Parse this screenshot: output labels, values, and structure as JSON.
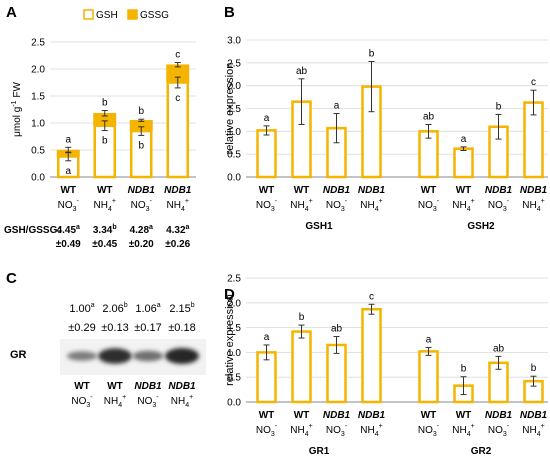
{
  "colors": {
    "bar": "#F4B400",
    "grid": "#D9D9D9",
    "error": "#333333"
  },
  "chart_data": [
    {
      "id": "A",
      "panel_label": "A",
      "type": "bar",
      "stacked": true,
      "ylabel_parts": [
        "μmol g",
        "-1",
        " FW"
      ],
      "ylim": [
        0,
        2.5
      ],
      "yticks": [
        "0.0",
        "0.5",
        "1.0",
        "1.5",
        "2.0",
        "2.5"
      ],
      "grid": true,
      "legend": {
        "placement": "top",
        "items": [
          "GSH",
          "GSSG"
        ]
      },
      "categories": [
        {
          "genotype": "WT",
          "italic": false,
          "ion_base": "NO",
          "ion_sub": "3",
          "ion_sup": "-"
        },
        {
          "genotype": "WT",
          "italic": false,
          "ion_base": "NH",
          "ion_sub": "4",
          "ion_sup": "+"
        },
        {
          "genotype": "NDB1",
          "italic": true,
          "ion_base": "NO",
          "ion_sub": "3",
          "ion_sup": "-"
        },
        {
          "genotype": "NDB1",
          "italic": true,
          "ion_base": "NH",
          "ion_sub": "4",
          "ion_sup": "+"
        }
      ],
      "series": [
        {
          "name": "GSH",
          "values": [
            0.38,
            0.95,
            0.85,
            1.75
          ],
          "errors": [
            0.08,
            0.09,
            0.08,
            0.1
          ],
          "letters": [
            "a",
            "b",
            "b",
            "c"
          ]
        },
        {
          "name": "GSSG",
          "values": [
            0.12,
            0.23,
            0.2,
            0.33
          ],
          "errors": [
            0.05,
            0.05,
            0.02,
            0.04
          ],
          "letters": [
            "a",
            "b",
            "b",
            "c"
          ]
        }
      ],
      "ratio_label": "GSH/GSSG:",
      "ratios": [
        {
          "value": "4.45",
          "sup": "a",
          "sd": "±0.49"
        },
        {
          "value": "3.34",
          "sup": "b",
          "sd": "±0.45"
        },
        {
          "value": "4.28",
          "sup": "a",
          "sd": "±0.20"
        },
        {
          "value": "4.32",
          "sup": "a",
          "sd": "±0.26"
        }
      ]
    },
    {
      "id": "B",
      "panel_label": "B",
      "type": "bar",
      "ylabel": "relative expression",
      "ylim": [
        0,
        3.0
      ],
      "yticks": [
        "0.0",
        "0.5",
        "1.0",
        "1.5",
        "2.0",
        "2.5",
        "3.0"
      ],
      "grid": true,
      "groups": [
        {
          "name": "GSH1",
          "values": [
            1.02,
            1.65,
            1.07,
            1.98
          ],
          "errors": [
            0.1,
            0.5,
            0.32,
            0.55
          ],
          "letters": [
            "a",
            "ab",
            "a",
            "b"
          ],
          "categories": [
            {
              "genotype": "WT",
              "italic": false,
              "ion_base": "NO",
              "ion_sub": "3",
              "ion_sup": "-"
            },
            {
              "genotype": "WT",
              "italic": false,
              "ion_base": "NH",
              "ion_sub": "4",
              "ion_sup": "+"
            },
            {
              "genotype": "NDB1",
              "italic": true,
              "ion_base": "NO",
              "ion_sub": "3",
              "ion_sup": "-"
            },
            {
              "genotype": "NDB1",
              "italic": true,
              "ion_base": "NH",
              "ion_sub": "4",
              "ion_sup": "+"
            }
          ]
        },
        {
          "name": "GSH2",
          "values": [
            1.0,
            0.62,
            1.1,
            1.63
          ],
          "errors": [
            0.15,
            0.04,
            0.27,
            0.27
          ],
          "letters": [
            "ab",
            "a",
            "b",
            "c"
          ],
          "categories": [
            {
              "genotype": "WT",
              "italic": false,
              "ion_base": "NO",
              "ion_sub": "3",
              "ion_sup": "-"
            },
            {
              "genotype": "WT",
              "italic": false,
              "ion_base": "NH",
              "ion_sub": "4",
              "ion_sup": "+"
            },
            {
              "genotype": "NDB1",
              "italic": true,
              "ion_base": "NO",
              "ion_sub": "3",
              "ion_sup": "-"
            },
            {
              "genotype": "NDB1",
              "italic": true,
              "ion_base": "NH",
              "ion_sub": "4",
              "ion_sup": "+"
            }
          ]
        }
      ]
    },
    {
      "id": "D",
      "panel_label": "D",
      "type": "bar",
      "ylabel": "relative expression",
      "ylim": [
        0,
        2.5
      ],
      "yticks": [
        "0.0",
        "0.5",
        "1.0",
        "1.5",
        "2.0",
        "2.5"
      ],
      "grid": true,
      "groups": [
        {
          "name": "GR1",
          "values": [
            1.0,
            1.42,
            1.15,
            1.87
          ],
          "errors": [
            0.15,
            0.13,
            0.17,
            0.1
          ],
          "letters": [
            "a",
            "b",
            "ab",
            "c"
          ],
          "categories": [
            {
              "genotype": "WT",
              "italic": false,
              "ion_base": "NO",
              "ion_sub": "3",
              "ion_sup": "-"
            },
            {
              "genotype": "WT",
              "italic": false,
              "ion_base": "NH",
              "ion_sub": "4",
              "ion_sup": "+"
            },
            {
              "genotype": "NDB1",
              "italic": true,
              "ion_base": "NO",
              "ion_sub": "3",
              "ion_sup": "-"
            },
            {
              "genotype": "NDB1",
              "italic": true,
              "ion_base": "NH",
              "ion_sub": "4",
              "ion_sup": "+"
            }
          ]
        },
        {
          "name": "GR2",
          "values": [
            1.02,
            0.33,
            0.79,
            0.42
          ],
          "errors": [
            0.08,
            0.18,
            0.13,
            0.1
          ],
          "letters": [
            "a",
            "b",
            "ab",
            "b"
          ],
          "categories": [
            {
              "genotype": "WT",
              "italic": false,
              "ion_base": "NO",
              "ion_sub": "3",
              "ion_sup": "-"
            },
            {
              "genotype": "WT",
              "italic": false,
              "ion_base": "NH",
              "ion_sub": "4",
              "ion_sup": "+"
            },
            {
              "genotype": "NDB1",
              "italic": true,
              "ion_base": "NO",
              "ion_sub": "3",
              "ion_sup": "-"
            },
            {
              "genotype": "NDB1",
              "italic": true,
              "ion_base": "NH",
              "ion_sub": "4",
              "ion_sup": "+"
            }
          ]
        }
      ]
    }
  ],
  "blot": {
    "panel_label": "C",
    "row_label": "GR",
    "values": [
      {
        "value": "1.00",
        "sup": "a",
        "sd": "±0.29"
      },
      {
        "value": "2.06",
        "sup": "b",
        "sd": "±0.13"
      },
      {
        "value": "1.06",
        "sup": "a",
        "sd": "±0.17"
      },
      {
        "value": "2.15",
        "sup": "b",
        "sd": "±0.18"
      }
    ],
    "band_intensity": [
      0.35,
      0.95,
      0.45,
      1.0
    ],
    "categories": [
      {
        "genotype": "WT",
        "italic": false,
        "ion_base": "NO",
        "ion_sub": "3",
        "ion_sup": "-"
      },
      {
        "genotype": "WT",
        "italic": false,
        "ion_base": "NH",
        "ion_sub": "4",
        "ion_sup": "+"
      },
      {
        "genotype": "NDB1",
        "italic": true,
        "ion_base": "NO",
        "ion_sub": "3",
        "ion_sup": "-"
      },
      {
        "genotype": "NDB1",
        "italic": true,
        "ion_base": "NH",
        "ion_sub": "4",
        "ion_sup": "+"
      }
    ]
  }
}
